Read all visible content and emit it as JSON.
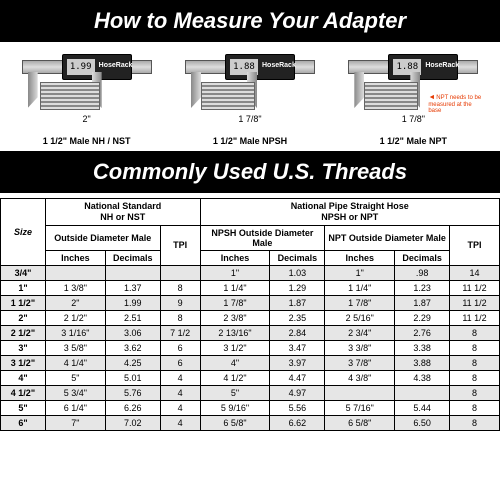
{
  "title1": "How to Measure Your Adapter",
  "title2": "Commonly Used U.S. Threads",
  "calipers": [
    {
      "reading": "1.99",
      "brand": "HoseRack",
      "dim": "2\"",
      "label": "1 1/2\" Male NH / NST",
      "jawOffset": 70,
      "threadLeft": 18
    },
    {
      "reading": "1.88",
      "brand": "HoseRack",
      "dim": "1 7/8\"",
      "label": "1 1/2\" Male NPSH",
      "jawOffset": 62,
      "threadLeft": 16
    },
    {
      "reading": "1.88",
      "brand": "HoseRack",
      "dim": "1 7/8\"",
      "label": "1 1/2\" Male NPT",
      "jawOffset": 62,
      "threadLeft": 16,
      "note": "NPT needs to be measured at the base"
    }
  ],
  "tableHead": {
    "size": "Size",
    "group1Title": "National Standard",
    "group1Sub": "NH or NST",
    "group1Span": "Outside Diameter Male",
    "group2Title": "National Pipe Straight Hose",
    "group2Sub": "NPSH or NPT",
    "npshSpan": "NPSH Outside Diameter Male",
    "nptSpan": "NPT Outside Diameter Male",
    "inches": "Inches",
    "decimals": "Decimals",
    "tpi": "TPI"
  },
  "rows": [
    {
      "size": "3/4\"",
      "c": [
        "",
        "",
        "",
        "1\"",
        "1.03",
        "1\"",
        ".98",
        "14"
      ]
    },
    {
      "size": "1\"",
      "c": [
        "1 3/8\"",
        "1.37",
        "8",
        "1 1/4\"",
        "1.29",
        "1 1/4\"",
        "1.23",
        "11 1/2"
      ]
    },
    {
      "size": "1 1/2\"",
      "c": [
        "2\"",
        "1.99",
        "9",
        "1 7/8\"",
        "1.87",
        "1 7/8\"",
        "1.87",
        "11 1/2"
      ]
    },
    {
      "size": "2\"",
      "c": [
        "2 1/2\"",
        "2.51",
        "8",
        "2 3/8\"",
        "2.35",
        "2 5/16\"",
        "2.29",
        "11 1/2"
      ]
    },
    {
      "size": "2 1/2\"",
      "c": [
        "3 1/16\"",
        "3.06",
        "7 1/2",
        "2 13/16\"",
        "2.84",
        "2 3/4\"",
        "2.76",
        "8"
      ]
    },
    {
      "size": "3\"",
      "c": [
        "3 5/8\"",
        "3.62",
        "6",
        "3 1/2\"",
        "3.47",
        "3 3/8\"",
        "3.38",
        "8"
      ]
    },
    {
      "size": "3 1/2\"",
      "c": [
        "4 1/4\"",
        "4.25",
        "6",
        "4\"",
        "3.97",
        "3 7/8\"",
        "3.88",
        "8"
      ]
    },
    {
      "size": "4\"",
      "c": [
        "5\"",
        "5.01",
        "4",
        "4 1/2\"",
        "4.47",
        "4 3/8\"",
        "4.38",
        "8"
      ]
    },
    {
      "size": "4 1/2\"",
      "c": [
        "5 3/4\"",
        "5.76",
        "4",
        "5\"",
        "4.97",
        "",
        "",
        "8"
      ]
    },
    {
      "size": "5\"",
      "c": [
        "6 1/4\"",
        "6.26",
        "4",
        "5 9/16\"",
        "5.56",
        "5 7/16\"",
        "5.44",
        "8"
      ]
    },
    {
      "size": "6\"",
      "c": [
        "7\"",
        "7.02",
        "4",
        "6 5/8\"",
        "6.62",
        "6 5/8\"",
        "6.50",
        "8"
      ]
    }
  ]
}
